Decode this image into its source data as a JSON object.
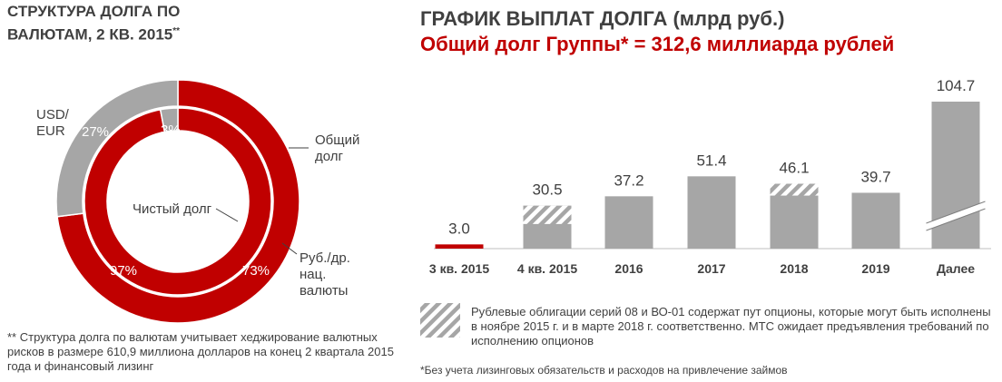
{
  "left_panel": {
    "title_line1": "СТРУКТУРА ДОЛГА ПО",
    "title_line2": "ВАЛЮТАМ, 2 КВ. 2015",
    "title_sup": "**",
    "labels": {
      "usd_eur_line1": "USD/",
      "usd_eur_line2": "EUR",
      "total_debt_line1": "Общий",
      "total_debt_line2": "долг",
      "net_debt": "Чистый долг",
      "rub_line1": "Руб./др.",
      "rub_line2": "нац.",
      "rub_line3": "валюты"
    },
    "footnote": "** Структура долга по валютам учитывает хеджирование валютных рисков в размере 610,9 миллиона долларов на конец 2 квартала 2015 года и финансовый лизинг"
  },
  "right_panel": {
    "title": "ГРАФИК ВЫПЛАТ ДОЛГА (млрд руб.)",
    "subtitle": "Общий долг Группы* = 312,6 миллиарда рублей",
    "legend_note": "Рублевые облигации серий 08 и ВО-01 содержат пут опционы, которые могут быть исполнены в ноябре 2015 г. и в марте 2018 г. соответственно. МТС ожидает предъявления требований по исполнению опционов",
    "footnote": "*Без учета лизинговых обязательств и расходов на привлечение займов"
  },
  "colors": {
    "red": "#c00000",
    "gray": "#a6a6a6",
    "text": "#404040"
  },
  "chart_data": [
    {
      "type": "pie",
      "title": "СТРУКТУРА ДОЛГА ПО ВАЛЮТАМ, 2 КВ. 2015",
      "series": [
        {
          "name": "Общий долг",
          "labels": [
            "Руб./др. нац. валюты",
            "USD/EUR"
          ],
          "values": [
            73,
            27
          ],
          "value_labels": [
            "73%",
            "27%"
          ]
        },
        {
          "name": "Чистый долг",
          "labels": [
            "Руб./др. нац. валюты",
            "USD/EUR"
          ],
          "values": [
            97,
            3
          ],
          "value_labels": [
            "97%",
            "3%"
          ]
        }
      ]
    },
    {
      "type": "bar",
      "title": "ГРАФИК ВЫПЛАТ ДОЛГА (млрд руб.)",
      "categories": [
        "3 кв. 2015",
        "4 кв. 2015",
        "2016",
        "2017",
        "2018",
        "2019",
        "Далее"
      ],
      "values": [
        3.0,
        30.5,
        37.2,
        51.4,
        46.1,
        39.7,
        104.7
      ],
      "value_labels": [
        "3.0",
        "30.5",
        "37.2",
        "51.4",
        "46.1",
        "39.7",
        "104.7"
      ],
      "put_option_share": [
        0,
        13.0,
        0,
        0,
        8.4,
        0,
        0
      ],
      "axis_break": "Далее",
      "grid": false
    }
  ]
}
